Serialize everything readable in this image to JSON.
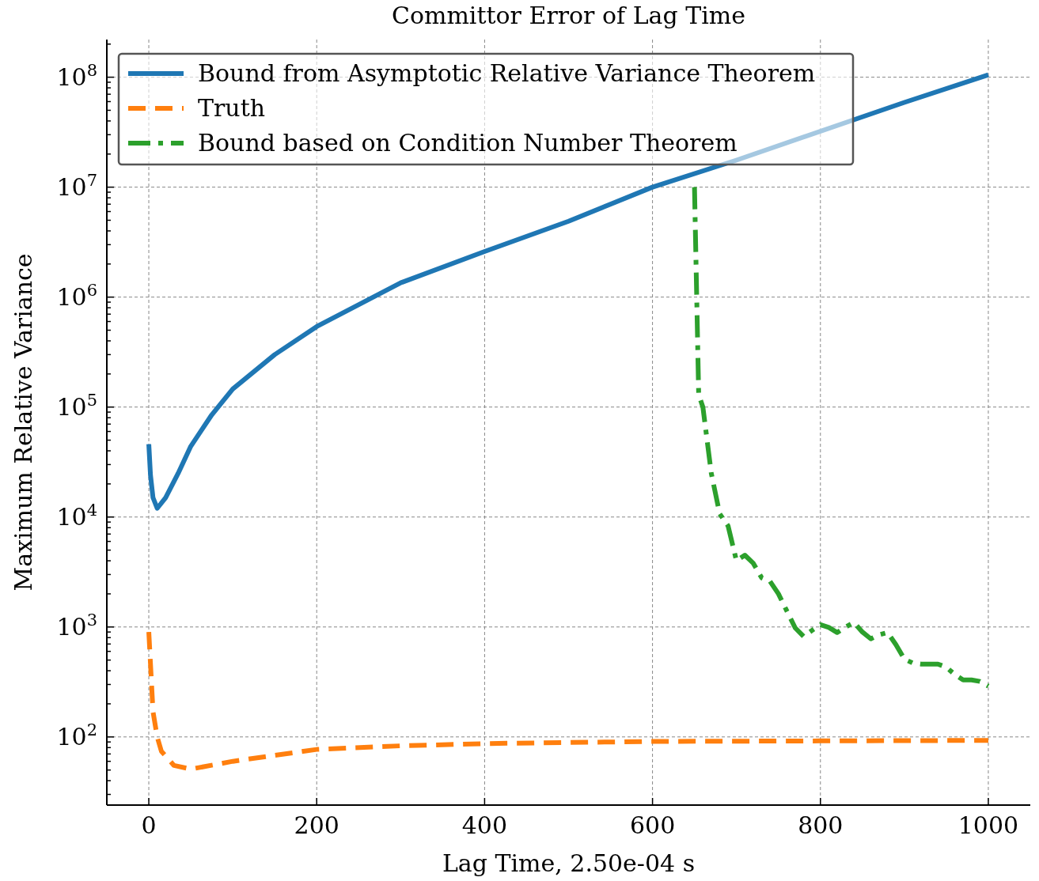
{
  "chart_data": {
    "type": "line",
    "title": "Committor Error of Lag Time",
    "xlabel": "Lag Time, 2.50e-04 s",
    "ylabel": "Maximum Relative Variance",
    "log": "y",
    "grid": true,
    "legend": "top left",
    "xlim": [
      -50,
      1050
    ],
    "xticks": [
      0,
      200,
      400,
      600,
      800,
      1000
    ],
    "ylim": [
      24,
      220000000
    ],
    "yticks": [
      {
        "value": 100,
        "label": "10$^{2}$"
      },
      {
        "value": 1000,
        "label": "10$^{3}$"
      },
      {
        "value": 10000,
        "label": "10$^{4}$"
      },
      {
        "value": 100000,
        "label": "10$^{5}$"
      },
      {
        "value": 1000000,
        "label": "10$^{6}$"
      },
      {
        "value": 10000000,
        "label": "10$^{7}$"
      },
      {
        "value": 100000000,
        "label": "10$^{8}$"
      },
      {
        "value": 30,
        "label": null
      },
      {
        "value": 40,
        "label": null
      },
      {
        "value": 50,
        "label": null
      },
      {
        "value": 60,
        "label": null
      },
      {
        "value": 70,
        "label": null
      },
      {
        "value": 80,
        "label": null
      },
      {
        "value": 90,
        "label": null
      },
      {
        "value": 200,
        "label": null
      },
      {
        "value": 300,
        "label": null
      },
      {
        "value": 400,
        "label": null
      },
      {
        "value": 500,
        "label": null
      },
      {
        "value": 600,
        "label": null
      },
      {
        "value": 700,
        "label": null
      },
      {
        "value": 800,
        "label": null
      },
      {
        "value": 900,
        "label": null
      },
      {
        "value": 2000,
        "label": null
      },
      {
        "value": 3000,
        "label": null
      },
      {
        "value": 4000,
        "label": null
      },
      {
        "value": 5000,
        "label": null
      },
      {
        "value": 6000,
        "label": null
      },
      {
        "value": 7000,
        "label": null
      },
      {
        "value": 8000,
        "label": null
      },
      {
        "value": 9000,
        "label": null
      },
      {
        "value": 20000,
        "label": null
      },
      {
        "value": 30000,
        "label": null
      },
      {
        "value": 40000,
        "label": null
      },
      {
        "value": 50000,
        "label": null
      },
      {
        "value": 60000,
        "label": null
      },
      {
        "value": 70000,
        "label": null
      },
      {
        "value": 80000,
        "label": null
      },
      {
        "value": 90000,
        "label": null
      },
      {
        "value": 200000,
        "label": null
      },
      {
        "value": 300000,
        "label": null
      },
      {
        "value": 400000,
        "label": null
      },
      {
        "value": 500000,
        "label": null
      },
      {
        "value": 600000,
        "label": null
      },
      {
        "value": 700000,
        "label": null
      },
      {
        "value": 800000,
        "label": null
      },
      {
        "value": 900000,
        "label": null
      },
      {
        "value": 2000000,
        "label": null
      },
      {
        "value": 3000000,
        "label": null
      },
      {
        "value": 4000000,
        "label": null
      },
      {
        "value": 5000000,
        "label": null
      },
      {
        "value": 6000000,
        "label": null
      },
      {
        "value": 7000000,
        "label": null
      },
      {
        "value": 8000000,
        "label": null
      },
      {
        "value": 9000000,
        "label": null
      },
      {
        "value": 20000000,
        "label": null
      },
      {
        "value": 30000000,
        "label": null
      },
      {
        "value": 40000000,
        "label": null
      },
      {
        "value": 50000000,
        "label": null
      },
      {
        "value": 60000000,
        "label": null
      },
      {
        "value": 70000000,
        "label": null
      },
      {
        "value": 80000000,
        "label": null
      },
      {
        "value": 90000000,
        "label": null
      },
      {
        "value": 200000000,
        "label": null
      }
    ],
    "series": [
      {
        "name": "Bound from Asymptotic Relative Variance Theorem",
        "color": "#1f77b4",
        "line_style": "solid",
        "x": [
          0,
          2,
          5,
          10,
          20,
          35,
          50,
          75,
          100,
          150,
          200,
          300,
          400,
          500,
          600,
          700,
          900,
          1000
        ],
        "values": [
          46000,
          24000,
          15000,
          12000,
          15000,
          25000,
          44000,
          85000,
          146000,
          300000,
          540000,
          1350000,
          2600000,
          4900000,
          10000000,
          17600000,
          59000000,
          105000000
        ]
      },
      {
        "name": "Truth",
        "color": "#ff7f0e",
        "line_style": "dashed",
        "x": [
          0,
          5,
          10,
          15,
          30,
          50,
          100,
          200,
          300,
          400,
          600,
          800,
          1000
        ],
        "values": [
          900,
          170,
          100,
          74,
          55,
          51,
          60,
          77,
          83,
          87,
          91,
          92,
          93
        ]
      },
      {
        "name": "Bound based on Condition Number Theorem",
        "color": "#2ca02c",
        "line_style": "dashdot",
        "x": [
          650,
          655,
          660,
          670,
          680,
          690,
          700,
          710,
          720,
          730,
          740,
          750,
          770,
          780,
          790,
          800,
          810,
          820,
          830,
          840,
          850,
          860,
          870,
          880,
          890,
          900,
          910,
          920,
          940,
          950,
          960,
          970,
          980,
          990,
          1000
        ],
        "values": [
          10000000,
          130000,
          100000,
          25000,
          10700,
          8300,
          4000,
          4500,
          3800,
          2800,
          2600,
          2000,
          980,
          820,
          930,
          1050,
          990,
          890,
          1000,
          1100,
          900,
          780,
          850,
          890,
          690,
          510,
          470,
          460,
          460,
          430,
          370,
          330,
          330,
          320,
          290
        ]
      }
    ]
  }
}
